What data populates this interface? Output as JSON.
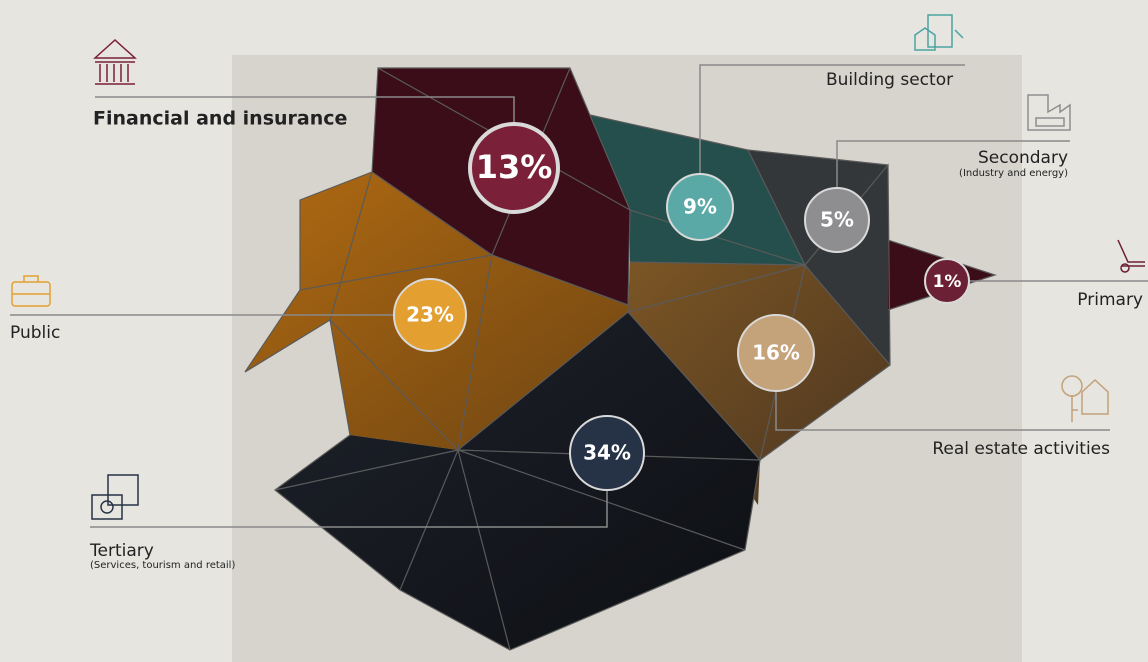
{
  "sectors": [
    {
      "label": "Financial and insurance",
      "percent": "13%"
    },
    {
      "label": "Building sector",
      "percent": "9%"
    },
    {
      "label": "Secondary",
      "sublabel": "(Industry and energy)",
      "percent": "5%"
    },
    {
      "label": "Primary",
      "percent": "1%"
    },
    {
      "label": "Public",
      "percent": "23%"
    },
    {
      "label": "Real estate activities",
      "percent": "16%"
    },
    {
      "label": "Tertiary",
      "sublabel": "(Services, tourism and retail)",
      "percent": "34%"
    }
  ]
}
